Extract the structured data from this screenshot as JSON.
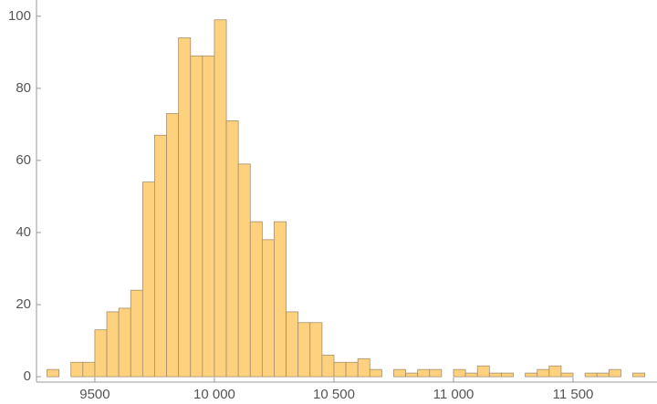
{
  "chart_data": {
    "type": "histogram",
    "bins": [
      9300,
      9350,
      9400,
      9450,
      9500,
      9550,
      9600,
      9650,
      9700,
      9750,
      9800,
      9850,
      9900,
      9950,
      10000,
      10050,
      10100,
      10150,
      10200,
      10250,
      10300,
      10350,
      10400,
      10450,
      10500,
      10550,
      10600,
      10650,
      10700,
      10750,
      10800,
      10850,
      10900,
      10950,
      11000,
      11050,
      11100,
      11150,
      11200,
      11250,
      11300,
      11350,
      11400,
      11450,
      11500,
      11550,
      11600,
      11650,
      11700,
      11750,
      11800
    ],
    "values": [
      2,
      0,
      4,
      4,
      13,
      18,
      19,
      24,
      54,
      67,
      73,
      94,
      89,
      89,
      99,
      71,
      59,
      43,
      38,
      43,
      18,
      15,
      15,
      6,
      4,
      4,
      5,
      2,
      0,
      2,
      1,
      2,
      2,
      0,
      2,
      1,
      3,
      1,
      1,
      0,
      1,
      2,
      3,
      1,
      0,
      1,
      1,
      2,
      0,
      1
    ],
    "color": "#fed17e",
    "edge_color": "#a38f70",
    "xlim": [
      9256,
      11851
    ],
    "ylim": [
      -1.5,
      104.5
    ],
    "xticks": [
      9500,
      {
        "value": 10000,
        "label": "10 000"
      },
      {
        "value": 10500,
        "label": "10 500"
      },
      {
        "value": 11000,
        "label": "11 000"
      },
      {
        "value": 11500,
        "label": "11 500"
      }
    ],
    "yticks": [
      0,
      20,
      40,
      60,
      80,
      100
    ]
  }
}
